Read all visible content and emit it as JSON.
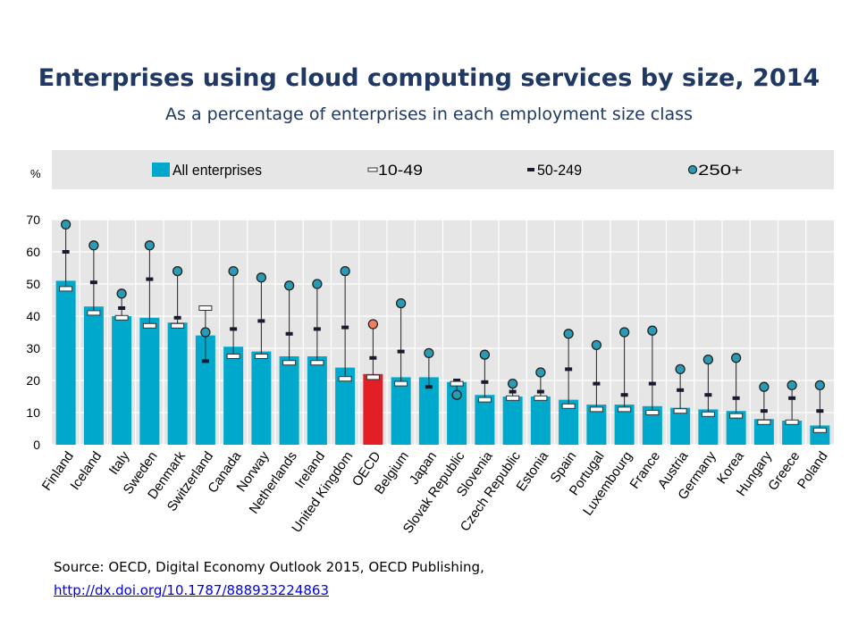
{
  "title": "Enterprises using cloud computing services by size, 2014",
  "subtitle": "As a percentage of enterprises in each employment size class",
  "source_text": "Source: OECD, Digital Economy Outlook 2015, OECD Publishing,",
  "source_link": "http://dx.doi.org/10.1787/888933224863",
  "colors": {
    "bar": "#00a9cc",
    "highlight": "#e31e25",
    "highlight_dot": "#f08060",
    "legend_bg": "#e6e6e6",
    "grid": "#ffffff",
    "plot_bg": "#e6e6e6"
  },
  "chart_data": {
    "type": "bar",
    "ylabel": "%",
    "ylim": [
      0,
      70
    ],
    "yticks": [
      0,
      10,
      20,
      30,
      40,
      50,
      60,
      70
    ],
    "legend_position": "top",
    "categories": [
      "Finland",
      "Iceland",
      "Italy",
      "Sweden",
      "Denmark",
      "Switzerland",
      "Canada",
      "Norway",
      "Netherlands",
      "Ireland",
      "United Kingdom",
      "OECD",
      "Belgium",
      "Japan",
      "Slovak Republic",
      "Slovenia",
      "Czech Republic",
      "Estonia",
      "Spain",
      "Portugal",
      "Luxembourg",
      "France",
      "Austria",
      "Germany",
      "Korea",
      "Hungary",
      "Greece",
      "Poland"
    ],
    "highlight_category": "OECD",
    "series": [
      {
        "name": "All enterprises",
        "marker": "bar",
        "values": [
          51,
          43,
          40,
          39.5,
          38,
          34,
          30.5,
          29,
          27.5,
          27.5,
          24,
          22,
          21,
          21,
          19.5,
          15.5,
          15,
          15,
          14,
          12.5,
          12.5,
          12,
          11.5,
          11,
          10.5,
          8,
          7.5,
          6
        ]
      },
      {
        "name": "10-49",
        "marker": "white-dash",
        "values": [
          48.5,
          41,
          39.5,
          37,
          37,
          42.5,
          27.5,
          27.5,
          25.5,
          25.5,
          20.5,
          21,
          19,
          null,
          19,
          14,
          14.5,
          14.5,
          12,
          11,
          11,
          10,
          10.5,
          9.5,
          9,
          7,
          7,
          4.5
        ]
      },
      {
        "name": "50-249",
        "marker": "dark-dash",
        "values": [
          60,
          50.5,
          42.5,
          51.5,
          39.5,
          26,
          36,
          38.5,
          34.5,
          36,
          36.5,
          27,
          29,
          18,
          20,
          19.5,
          16.5,
          16.5,
          23.5,
          19,
          15.5,
          19,
          17,
          15.5,
          14.5,
          10.5,
          14.5,
          10.5
        ]
      },
      {
        "name": "250+",
        "marker": "circle",
        "values": [
          68.5,
          62,
          47,
          62,
          54,
          35,
          54,
          52,
          49.5,
          50,
          54,
          37.5,
          44,
          28.5,
          15.5,
          28,
          19,
          22.5,
          34.5,
          31,
          35,
          35.5,
          23.5,
          26.5,
          27,
          18,
          18.5,
          18.5
        ]
      }
    ]
  }
}
